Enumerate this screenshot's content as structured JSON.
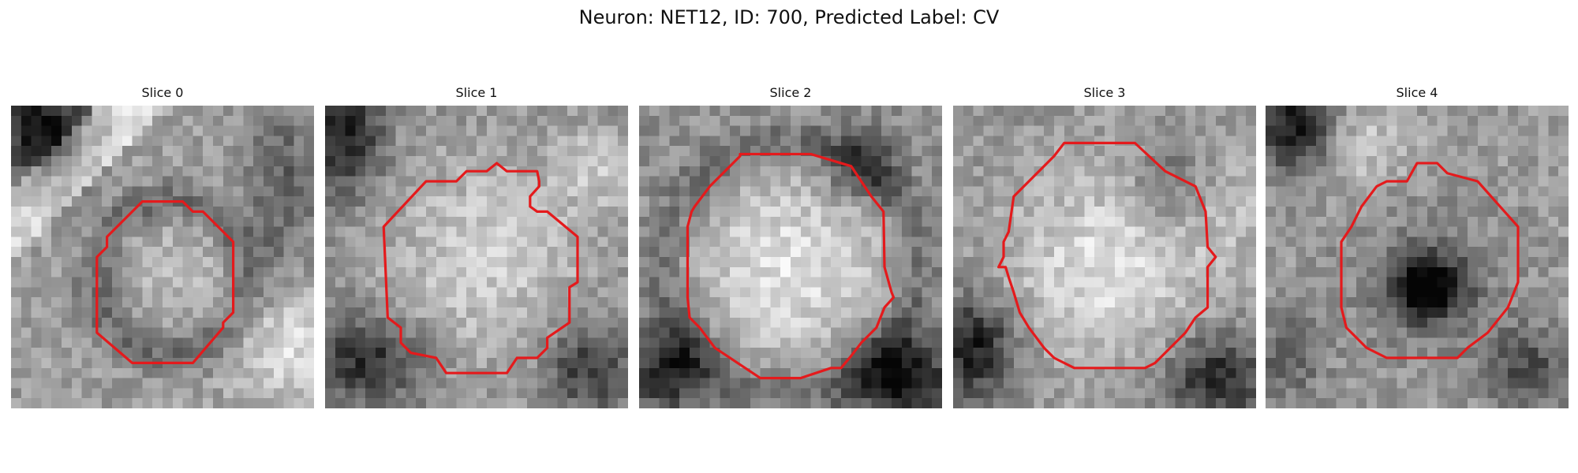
{
  "figure": {
    "title": "Neuron: NET12, ID: 700, Predicted Label: CV"
  },
  "colors": {
    "contour": "#e41a1c",
    "background": "#ffffff"
  },
  "panels": [
    {
      "title": "Slice 0"
    },
    {
      "title": "Slice 1"
    },
    {
      "title": "Slice 2"
    },
    {
      "title": "Slice 3"
    },
    {
      "title": "Slice 4"
    }
  ]
}
